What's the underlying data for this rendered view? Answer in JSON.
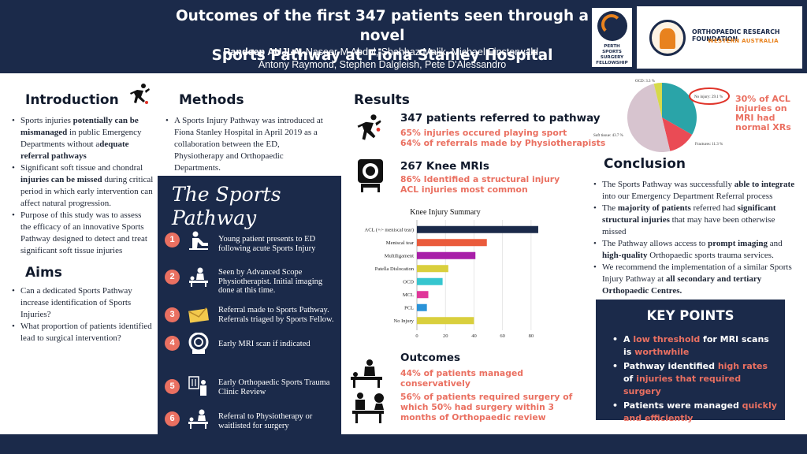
{
  "header": {
    "title_line1": "Outcomes of the first 347 patients seen through a novel",
    "title_line2": "Sports Pathway at Fiona Stanley Hospital",
    "authors_lead": "Randeep AUJLA,",
    "authors_rest": " Naseer M Abdul, Shahbaz Malik, Michael Finsterwald,",
    "authors_line2": "Antony Raymond, Stephen Dalgleish, Pete D'Alessandro",
    "logo_perth": "PERTH\nSPORTS SURGERY\nFELLOWSHIP",
    "logo_orf_name": "ORTHOPAEDIC RESEARCH FOUNDATION",
    "logo_orf_sub": "WESTERN AUSTRALIA"
  },
  "introduction": {
    "heading": "Introduction",
    "b1_a": "Sports injuries ",
    "b1_b": "potentially can be mismanaged",
    "b1_c": " in public Emergency Departments without a",
    "b1_d": "dequate referral pathways",
    "b2_a": "Significant soft tissue and chondral ",
    "b2_b": "injuries can be missed",
    "b2_c": " during critical period in which early intervention can affect natural progression.",
    "b3": "Purpose of this study was to assess the efficacy of an innovative Sports Pathway designed to detect and treat significant soft tissue injuries"
  },
  "aims": {
    "heading": "Aims",
    "b1": "Can a dedicated Sports Pathway increase identification of Sports Injuries?",
    "b2": "What proportion of patients identified lead to surgical intervention?"
  },
  "methods": {
    "heading": "Methods",
    "b1": "A Sports Injury Pathway was introduced at Fiona Stanley Hospital in April 2019 as a collaboration between the ED, Physiotherapy and Orthopaedic Departments."
  },
  "pathway": {
    "title": "The Sports Pathway",
    "steps": [
      {
        "num": "1",
        "icon": "injured-patient-icon",
        "text": "Young patient presents to ED following acute Sports Injury"
      },
      {
        "num": "2",
        "icon": "physio-examination-icon",
        "text": "Seen by Advanced Scope Physiotherapist. Initial imaging done at this time."
      },
      {
        "num": "3",
        "icon": "envelope-icon",
        "text": "Referral made to Sports Pathway. Referrals triaged by Sports Fellow."
      },
      {
        "num": "4",
        "icon": "mri-scanner-icon",
        "text": "Early MRI scan if indicated"
      },
      {
        "num": "5",
        "icon": "xray-review-icon",
        "text": "Early Orthopaedic Sports Trauma Clinic Review"
      },
      {
        "num": "6",
        "icon": "physio-referral-icon",
        "text": "Referral to Physiotherapy or waitlisted for surgery"
      }
    ]
  },
  "results": {
    "heading": "Results",
    "block1": {
      "head": "347 patients referred to pathway",
      "l1": "65% injuries occured playing sport",
      "l2": "64% of referrals made by Physiotherapists"
    },
    "block2": {
      "head": "267 Knee MRIs",
      "l1": "86% Identified a structural injury",
      "l2": "ACL injuries most common"
    },
    "outcomes": {
      "head": "Outcomes",
      "l1": "44% of patients managed conservatively",
      "l2": "56% of patients required surgery of which 50% had surgery within 3 months of Orthopaedic review"
    }
  },
  "pie": {
    "labels": {
      "ocd": "OCD: 3.3 %",
      "no_injury": "No injury: 29.1 %",
      "fractures": "Fractures: 11.3 %",
      "soft_tissue": "Soft tissue: 43.7 %"
    },
    "callout": "30% of ACL injuries on MRI had normal XRs",
    "colors": {
      "no_injury": "#2aa4a8",
      "fractures": "#ea4b55",
      "soft_tissue": "#d7c4cf",
      "ocd": "#d6d94a"
    }
  },
  "chart_data": {
    "type": "bar",
    "orientation": "horizontal",
    "title": "Knee Injury Summary",
    "categories": [
      "ACL (+/- meniscal tear)",
      "Meniscal tear",
      "Multiligament",
      "Patella Dislocation",
      "OCD",
      "MCL",
      "PCL",
      "No Injury"
    ],
    "values": [
      85,
      49,
      41,
      22,
      18,
      8,
      7,
      40
    ],
    "colors": [
      "#1b2a4a",
      "#ea5b3c",
      "#a81fa8",
      "#d9cf3d",
      "#36c6cf",
      "#e0369a",
      "#2a93d8",
      "#d9cf3d"
    ],
    "xlim": [
      0,
      90
    ],
    "xticks": [
      "0",
      "20",
      "40",
      "60",
      "80"
    ],
    "grid": true
  },
  "conclusion": {
    "heading": "Conclusion",
    "b1_a": "The Sports Pathway was successfully ",
    "b1_b": "able to integrate",
    "b1_c": " into our Emergency Department Referral process",
    "b2_a": "The ",
    "b2_b": "majority of patients",
    "b2_c": " referred had ",
    "b2_d": "significant structural injuries",
    "b2_e": " that may have been otherwise missed",
    "b3_a": "The Pathway allows access to ",
    "b3_b": "prompt imaging",
    "b3_c": " and ",
    "b3_d": "high-quality",
    "b3_e": " Orthopaedic sports trauma services.",
    "b4_a": "We recommend the implementation of a similar Sports Injury Pathway at ",
    "b4_b": "all secondary and tertiary Orthopaedic Centres."
  },
  "key_points": {
    "heading": "KEY POINTS",
    "p1_a": "A ",
    "p1_b": "low threshold",
    "p1_c": " for MRI scans  is ",
    "p1_d": "worthwhile",
    "p2_a": "Pathway identified ",
    "p2_b": "high rates",
    "p2_c": " of ",
    "p2_d": "injuries that required surgery",
    "p3_a": "Patients were managed ",
    "p3_b": "quickly and efficiently"
  }
}
